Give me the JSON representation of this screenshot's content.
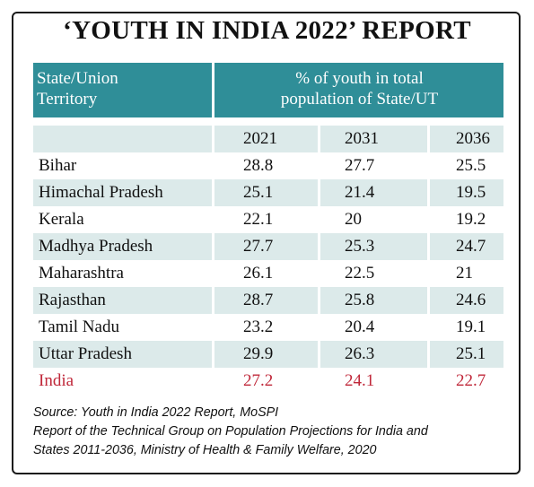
{
  "title": "‘YOUTH IN INDIA 2022’ REPORT",
  "header": {
    "left_line1": "State/Union",
    "left_line2": "Territory",
    "right_line1": "% of youth in total",
    "right_line2": "population of State/UT"
  },
  "columns": [
    "2021",
    "2031",
    "2036"
  ],
  "rows": [
    {
      "state": "Bihar",
      "v2021": "28.8",
      "v2031": "27.7",
      "v2036": "25.5"
    },
    {
      "state": "Himachal Pradesh",
      "v2021": "25.1",
      "v2031": "21.4",
      "v2036": "19.5"
    },
    {
      "state": "Kerala",
      "v2021": "22.1",
      "v2031": "20",
      "v2036": "19.2"
    },
    {
      "state": "Madhya Pradesh",
      "v2021": "27.7",
      "v2031": "25.3",
      "v2036": "24.7"
    },
    {
      "state": "Maharashtra",
      "v2021": "26.1",
      "v2031": "22.5",
      "v2036": "21"
    },
    {
      "state": "Rajasthan",
      "v2021": "28.7",
      "v2031": "25.8",
      "v2036": "24.6"
    },
    {
      "state": "Tamil Nadu",
      "v2021": "23.2",
      "v2031": "20.4",
      "v2036": "19.1"
    },
    {
      "state": "Uttar Pradesh",
      "v2021": "29.9",
      "v2031": "26.3",
      "v2036": "25.1"
    }
  ],
  "total": {
    "state": "India",
    "v2021": "27.2",
    "v2031": "24.1",
    "v2036": "22.7"
  },
  "source": {
    "line1": "Source: Youth in India 2022 Report, MoSPI",
    "line2": "Report of the Technical Group on Population Projections for India and",
    "line3": "States 2011-2036, Ministry of Health & Family Welfare, 2020"
  },
  "colors": {
    "header": "#2f8e98",
    "band": "#dceaea",
    "total": "#c0283a"
  }
}
